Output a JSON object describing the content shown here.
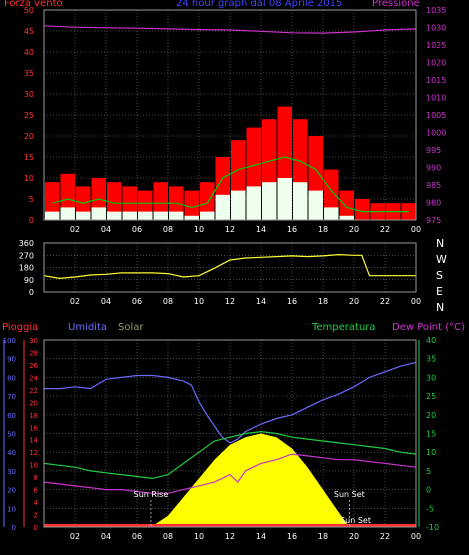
{
  "colors": {
    "background": "#000000",
    "frame": "#9a9a9a",
    "grid": "#8c8c8c",
    "wind_max": "#ff0000",
    "wind_avg": "#00cc00",
    "wind_min": "#eeffee",
    "pressure": "#cc33cc",
    "direction": "#ffff33",
    "rain": "#ff3333",
    "humidity": "#6a6aff",
    "solar": "#ffff00",
    "temperature": "#22cc44",
    "dew_point": "#cc33cc",
    "sun_marker": "#ffffff"
  },
  "chart_data": [
    {
      "type": "line",
      "id": "wind-pressure",
      "title": "24 hour graph dal 08 Aprile 2015",
      "left_axis_label": "Forza vento",
      "right_axis_label": "Pressione",
      "x_ticks": [
        "02",
        "04",
        "06",
        "08",
        "10",
        "12",
        "14",
        "16",
        "18",
        "20",
        "22",
        "00"
      ],
      "y_left_ticks": [
        0,
        5,
        10,
        15,
        20,
        25,
        30,
        35,
        40,
        45,
        50
      ],
      "y_left_range": [
        0,
        50
      ],
      "y_right_ticks": [
        975,
        980,
        985,
        990,
        995,
        1000,
        1005,
        1010,
        1015,
        1020,
        1025,
        1030,
        1035
      ],
      "y_right_range": [
        975,
        1035
      ],
      "grid": true,
      "series": [
        {
          "name": "Wind max",
          "axis": "left",
          "kind": "bars",
          "x": [
            1,
            2,
            3,
            4,
            5,
            6,
            7,
            8,
            9,
            10,
            11,
            12,
            13,
            14,
            15,
            16,
            17,
            18,
            19,
            20,
            21,
            22,
            23,
            24
          ],
          "values": [
            9,
            11,
            8,
            10,
            9,
            8,
            7,
            9,
            8,
            7,
            9,
            15,
            19,
            22,
            24,
            27,
            24,
            20,
            12,
            7,
            5,
            4,
            4,
            4
          ]
        },
        {
          "name": "Wind avg",
          "axis": "left",
          "kind": "line",
          "x": [
            1,
            2,
            3,
            4,
            5,
            6,
            7,
            8,
            9,
            10,
            11,
            12,
            13,
            14,
            15,
            16,
            17,
            18,
            19,
            20,
            21,
            22,
            23,
            24
          ],
          "values": [
            4,
            5,
            4,
            5,
            4,
            4,
            4,
            4,
            4,
            3,
            4,
            10,
            12,
            13,
            14,
            15,
            14,
            12,
            7,
            3,
            2,
            2,
            2,
            2
          ]
        },
        {
          "name": "Wind min",
          "axis": "left",
          "kind": "bars",
          "x": [
            1,
            2,
            3,
            4,
            5,
            6,
            7,
            8,
            9,
            10,
            11,
            12,
            13,
            14,
            15,
            16,
            17,
            18,
            19,
            20,
            21,
            22,
            23,
            24
          ],
          "values": [
            2,
            3,
            2,
            3,
            2,
            2,
            2,
            2,
            2,
            1,
            2,
            6,
            7,
            8,
            9,
            10,
            9,
            7,
            3,
            1,
            0,
            0,
            0,
            0
          ]
        },
        {
          "name": "Pressione",
          "axis": "right",
          "kind": "line",
          "x": [
            0,
            2,
            4,
            6,
            8,
            10,
            12,
            14,
            16,
            18,
            20,
            22,
            24
          ],
          "values": [
            1030.5,
            1030.1,
            1029.9,
            1029.8,
            1029.6,
            1029.4,
            1029.3,
            1028.9,
            1028.5,
            1028.4,
            1028.7,
            1029.3,
            1029.6
          ]
        }
      ]
    },
    {
      "type": "line",
      "id": "wind-direction",
      "x_ticks": [
        "02",
        "04",
        "06",
        "08",
        "10",
        "12",
        "14",
        "16",
        "18",
        "20",
        "22",
        "00"
      ],
      "y_left_ticks": [
        0,
        90,
        180,
        270,
        360
      ],
      "y_range": [
        0,
        360
      ],
      "compass": [
        "N",
        "W",
        "S",
        "E",
        "N"
      ],
      "grid": true,
      "series": [
        {
          "name": "Direzione",
          "x": [
            0,
            1,
            2,
            3,
            4,
            5,
            6,
            7,
            8,
            9,
            10,
            11,
            12,
            13,
            14,
            15,
            16,
            17,
            18,
            19,
            20,
            20.5,
            21,
            22,
            23,
            24
          ],
          "values": [
            120,
            100,
            110,
            125,
            130,
            140,
            140,
            140,
            135,
            110,
            120,
            175,
            235,
            250,
            255,
            260,
            265,
            260,
            265,
            275,
            270,
            270,
            120,
            120,
            120,
            120
          ]
        }
      ]
    },
    {
      "type": "line",
      "id": "temp-humidity-solar",
      "legend": [
        "Pioggia",
        "Umidita",
        "Solar",
        "Temperatura",
        "Dew Point (°C)"
      ],
      "x_ticks": [
        "02",
        "04",
        "06",
        "08",
        "10",
        "12",
        "14",
        "16",
        "18",
        "20",
        "22",
        "00"
      ],
      "rain_ticks": [
        0,
        2,
        4,
        6,
        8,
        10,
        12,
        14,
        16,
        18,
        20,
        22,
        24,
        26,
        28,
        30
      ],
      "humidity_ticks": [
        0,
        10,
        20,
        30,
        40,
        50,
        60,
        70,
        80,
        90,
        100
      ],
      "temp_ticks": [
        -10,
        -5,
        0,
        5,
        10,
        15,
        20,
        25,
        30,
        35,
        40
      ],
      "humidity_range": [
        0,
        100
      ],
      "temp_range": [
        -10,
        40
      ],
      "grid": true,
      "annotations": [
        {
          "text": "Sun Rise",
          "x": 6.9
        },
        {
          "text": "Sun Set",
          "x": 19.7
        },
        {
          "text": "Sun Set",
          "x": 20.1
        }
      ],
      "series": [
        {
          "name": "Umidita",
          "axis": "humidity",
          "x": [
            0,
            1,
            2,
            3,
            4,
            5,
            6,
            7,
            8,
            9,
            9.5,
            10,
            10.5,
            11,
            11.5,
            12,
            12.5,
            13,
            14,
            15,
            16,
            17,
            18,
            19,
            20,
            21,
            22,
            23,
            24
          ],
          "values": [
            74,
            74,
            75,
            74,
            79,
            80,
            81,
            81,
            80,
            78,
            76,
            67,
            60,
            54,
            48,
            45,
            47,
            51,
            55,
            58,
            60,
            64,
            68,
            71,
            75,
            80,
            83,
            86,
            88
          ]
        },
        {
          "name": "Temperatura",
          "axis": "temp",
          "x": [
            0,
            1,
            2,
            3,
            4,
            5,
            6,
            7,
            8,
            9,
            10,
            11,
            12,
            13,
            14,
            15,
            16,
            17,
            18,
            19,
            20,
            21,
            22,
            23,
            24
          ],
          "values": [
            7,
            6.5,
            6,
            5,
            4.5,
            4,
            3.5,
            3,
            4,
            7,
            10,
            13,
            14,
            15,
            15.5,
            15,
            14,
            13.5,
            13,
            12.5,
            12,
            11.5,
            11,
            10,
            9.5
          ]
        },
        {
          "name": "Dew Point",
          "axis": "temp",
          "x": [
            0,
            1,
            2,
            3,
            4,
            5,
            6,
            7,
            8,
            9,
            10,
            11,
            12,
            12.5,
            13,
            14,
            15,
            16,
            17,
            18,
            19,
            20,
            21,
            22,
            23,
            24
          ],
          "values": [
            2,
            1.5,
            1,
            0.5,
            0,
            0,
            -0.5,
            -1,
            -1,
            0,
            1,
            2,
            4,
            2,
            5,
            7,
            8,
            9.5,
            9,
            8.5,
            8,
            8,
            7.5,
            7,
            6.5,
            6
          ]
        },
        {
          "name": "Solar",
          "axis": "temp",
          "x": [
            6.9,
            8,
            9,
            10,
            11,
            12,
            13,
            14,
            15,
            16,
            17,
            18,
            19,
            19.7
          ],
          "values": [
            -10,
            -7,
            -2,
            3,
            8,
            12,
            14,
            15,
            14,
            11,
            6,
            0,
            -6,
            -10
          ]
        },
        {
          "name": "Pioggia",
          "axis": "rain",
          "x": [
            0,
            24
          ],
          "values": [
            0,
            0
          ]
        }
      ]
    }
  ]
}
